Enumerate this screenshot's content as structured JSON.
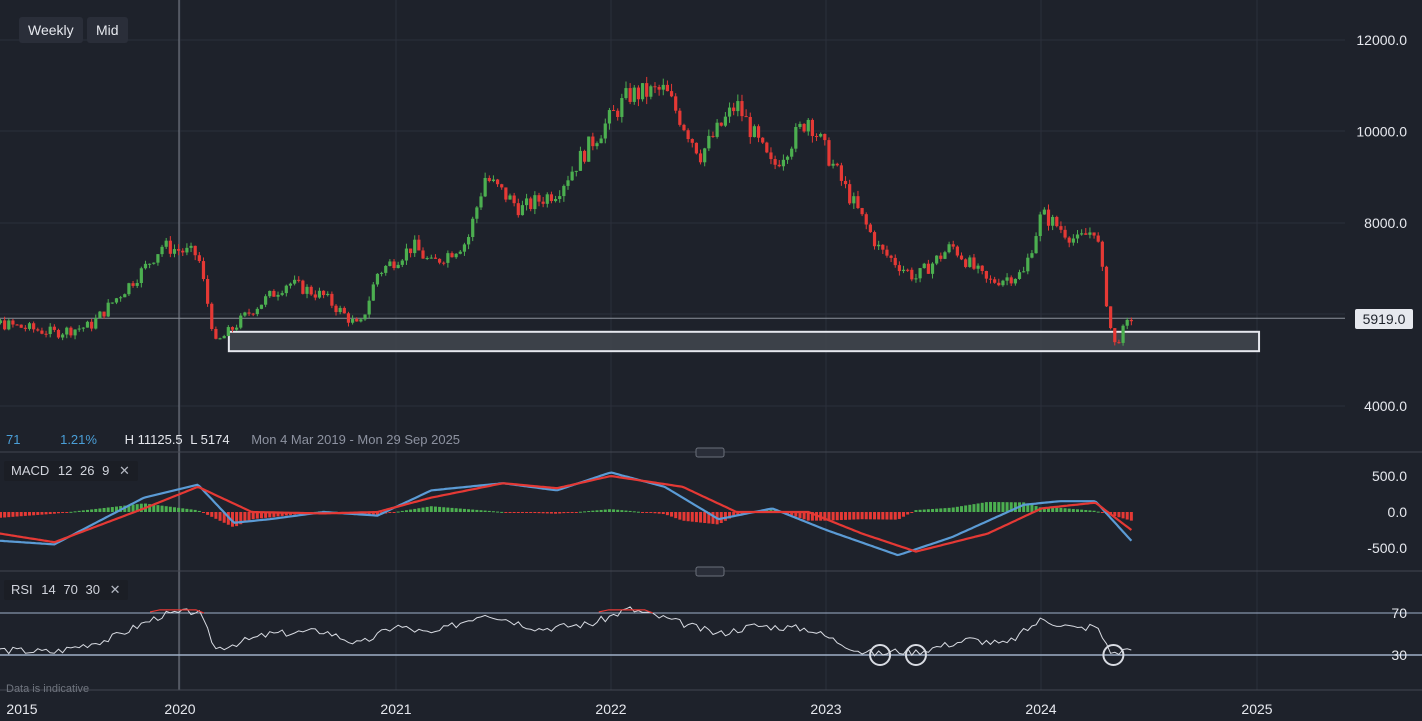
{
  "toolbar": {
    "interval_label": "Weekly",
    "price_type_label": "Mid"
  },
  "price_panel": {
    "info_partial": "71",
    "change_pct": "1.21%",
    "high_label": "H 11125.5",
    "low_label": "L 5174",
    "range_label": "Mon 4 Mar 2019 - Mon 29 Sep 2025",
    "current_price_label": "5919.0"
  },
  "macd_panel": {
    "name": "MACD",
    "params": [
      "12",
      "26",
      "9"
    ],
    "close_icon": "close-icon"
  },
  "rsi_panel": {
    "name": "RSI",
    "params": [
      "14",
      "70",
      "30"
    ],
    "close_icon": "close-icon"
  },
  "footer": {
    "disclaimer": "Data is indicative"
  },
  "colors": {
    "background": "#1e222b",
    "up": "#4caf50",
    "down": "#e53935",
    "macd_line": "#5b9bd5",
    "signal_line": "#e53935",
    "rsi_line": "#d8dbe2",
    "support_zone": "#42464f",
    "accent_text": "#4a9fd8"
  },
  "chart_data": [
    {
      "type": "candlestick",
      "x_axis_labels": [
        "2015",
        "2020",
        "2021",
        "2022",
        "2023",
        "2024",
        "2025"
      ],
      "y_tick_labels": [
        "12000.0",
        "10000.0",
        "8000.0",
        "4000.0"
      ],
      "ylim": [
        3500,
        13000
      ],
      "current_price": 5919.0,
      "support_zone": [
        5220,
        5600
      ],
      "support_zone_range": [
        "2020-04",
        "2024-12"
      ],
      "price_path": [
        [
          "2019-03",
          5800
        ],
        [
          "2019-06",
          5600
        ],
        [
          "2019-08",
          5750
        ],
        [
          "2019-11",
          7000
        ],
        [
          "2019-12",
          7500
        ],
        [
          "2020-02",
          7300
        ],
        [
          "2020-03",
          5350
        ],
        [
          "2020-05",
          6100
        ],
        [
          "2020-07",
          6700
        ],
        [
          "2020-09",
          6400
        ],
        [
          "2020-11",
          5700
        ],
        [
          "2020-12",
          6900
        ],
        [
          "2021-02",
          7500
        ],
        [
          "2021-03",
          7100
        ],
        [
          "2021-05",
          7600
        ],
        [
          "2021-06",
          9000
        ],
        [
          "2021-08",
          8300
        ],
        [
          "2021-10",
          8700
        ],
        [
          "2021-12",
          9800
        ],
        [
          "2022-02",
          10800
        ],
        [
          "2022-04",
          10900
        ],
        [
          "2022-06",
          9500
        ],
        [
          "2022-08",
          10600
        ],
        [
          "2022-10",
          9200
        ],
        [
          "2022-12",
          10300
        ],
        [
          "2023-02",
          8800
        ],
        [
          "2023-04",
          7400
        ],
        [
          "2023-06",
          6800
        ],
        [
          "2023-08",
          7500
        ],
        [
          "2023-10",
          6700
        ],
        [
          "2023-12",
          6900
        ],
        [
          "2024-01",
          8200
        ],
        [
          "2024-03",
          7600
        ],
        [
          "2024-04",
          7900
        ],
        [
          "2024-05",
          5300
        ],
        [
          "2024-06",
          5919
        ]
      ]
    },
    {
      "type": "line",
      "title": "MACD 12 26 9",
      "y_tick_labels": [
        "500.0",
        "0.0",
        "-500.0"
      ],
      "ylim": [
        -700,
        700
      ],
      "series": [
        {
          "name": "MACD",
          "points": [
            [
              "2019-03",
              -400
            ],
            [
              "2019-06",
              -450
            ],
            [
              "2019-11",
              200
            ],
            [
              "2020-02",
              380
            ],
            [
              "2020-04",
              -150
            ],
            [
              "2020-06",
              -100
            ],
            [
              "2020-09",
              0
            ],
            [
              "2020-12",
              -50
            ],
            [
              "2021-03",
              300
            ],
            [
              "2021-07",
              400
            ],
            [
              "2021-10",
              300
            ],
            [
              "2022-01",
              550
            ],
            [
              "2022-04",
              350
            ],
            [
              "2022-07",
              -100
            ],
            [
              "2022-10",
              50
            ],
            [
              "2023-01",
              -250
            ],
            [
              "2023-05",
              -600
            ],
            [
              "2023-08",
              -350
            ],
            [
              "2023-12",
              100
            ],
            [
              "2024-02",
              150
            ],
            [
              "2024-04",
              150
            ],
            [
              "2024-06",
              -400
            ]
          ]
        },
        {
          "name": "Signal",
          "points": [
            [
              "2019-03",
              -300
            ],
            [
              "2019-06",
              -420
            ],
            [
              "2019-11",
              50
            ],
            [
              "2020-02",
              350
            ],
            [
              "2020-05",
              0
            ],
            [
              "2020-09",
              -20
            ],
            [
              "2020-12",
              0
            ],
            [
              "2021-03",
              200
            ],
            [
              "2021-07",
              400
            ],
            [
              "2021-10",
              330
            ],
            [
              "2022-01",
              500
            ],
            [
              "2022-05",
              350
            ],
            [
              "2022-08",
              0
            ],
            [
              "2022-12",
              0
            ],
            [
              "2023-03",
              -300
            ],
            [
              "2023-06",
              -550
            ],
            [
              "2023-10",
              -300
            ],
            [
              "2024-01",
              50
            ],
            [
              "2024-04",
              130
            ],
            [
              "2024-06",
              -250
            ]
          ]
        }
      ]
    },
    {
      "type": "line",
      "title": "RSI 14 70 30",
      "y_tick_labels": [
        "70",
        "30"
      ],
      "ylim": [
        10,
        90
      ],
      "levels": [
        70,
        30
      ],
      "series": [
        {
          "name": "RSI",
          "points": [
            [
              "2019-03",
              35
            ],
            [
              "2019-06",
              33
            ],
            [
              "2019-09",
              45
            ],
            [
              "2019-12",
              68
            ],
            [
              "2020-02",
              72
            ],
            [
              "2020-03",
              36
            ],
            [
              "2020-06",
              50
            ],
            [
              "2020-09",
              53
            ],
            [
              "2020-11",
              40
            ],
            [
              "2021-01",
              58
            ],
            [
              "2021-03",
              50
            ],
            [
              "2021-06",
              70
            ],
            [
              "2021-09",
              55
            ],
            [
              "2021-12",
              60
            ],
            [
              "2022-02",
              74
            ],
            [
              "2022-04",
              65
            ],
            [
              "2022-07",
              50
            ],
            [
              "2022-09",
              58
            ],
            [
              "2022-12",
              55
            ],
            [
              "2023-03",
              33
            ],
            [
              "2023-04",
              31
            ],
            [
              "2023-05",
              34
            ],
            [
              "2023-06",
              33
            ],
            [
              "2023-09",
              45
            ],
            [
              "2023-11",
              40
            ],
            [
              "2024-01",
              64
            ],
            [
              "2024-03",
              55
            ],
            [
              "2024-04",
              58
            ],
            [
              "2024-05",
              30
            ],
            [
              "2024-06",
              38
            ]
          ]
        }
      ],
      "highlighted_points": [
        "2023-04",
        "2023-06",
        "2024-05"
      ]
    }
  ]
}
